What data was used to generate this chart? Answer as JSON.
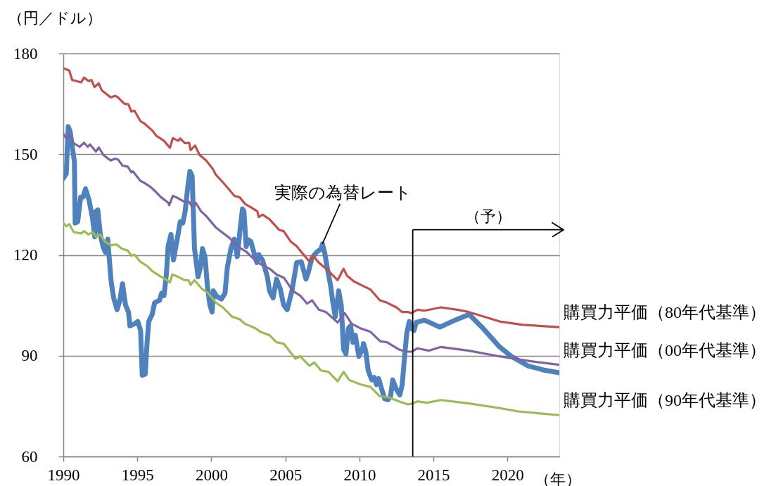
{
  "chart_data": {
    "type": "line",
    "xlabel": "（年）",
    "ylabel": "（円／ドル）",
    "xlim": [
      1990,
      2023.5
    ],
    "xticks": [
      1990,
      1995,
      2000,
      2005,
      2010,
      2015,
      2020
    ],
    "ylim": [
      60,
      180
    ],
    "yticks": [
      60,
      90,
      120,
      150,
      180
    ],
    "grid": "y",
    "line_style": "solid",
    "annotations": [
      {
        "text": "実際の為替レート",
        "x": 2007.5,
        "y": 123.3
      }
    ],
    "ref_lines": [
      {
        "axis": "x",
        "value": 2013.6,
        "color": "#000000"
      },
      {
        "axis": "y",
        "value": 127.5,
        "label": "（予）",
        "color": "#000000"
      }
    ],
    "series": [
      {
        "color": "#4f81bd",
        "x": [
          1990.0,
          1990.2,
          1990.33,
          1990.46,
          1990.75,
          1990.8,
          1990.97,
          1991.17,
          1991.33,
          1991.5,
          1991.73,
          1991.97,
          1992.13,
          1992.2,
          1992.33,
          1992.5,
          1992.68,
          1992.84,
          1993.0,
          1993.23,
          1993.4,
          1993.63,
          1993.8,
          1994.0,
          1994.2,
          1994.4,
          1994.5,
          1994.82,
          1995.03,
          1995.22,
          1995.33,
          1995.53,
          1995.66,
          1995.77,
          1996.0,
          1996.17,
          1996.5,
          1996.64,
          1996.8,
          1996.96,
          1997.08,
          1997.27,
          1997.44,
          1997.9,
          1998.07,
          1998.23,
          1998.4,
          1998.55,
          1998.7,
          1998.78,
          1998.86,
          1999.1,
          1999.26,
          1999.4,
          1999.58,
          1999.73,
          1999.9,
          2000.05,
          2000.13,
          2000.37,
          2000.68,
          2000.92,
          2001.08,
          2001.32,
          2001.55,
          2001.75,
          2001.95,
          2002.1,
          2002.2,
          2002.35,
          2002.5,
          2002.67,
          2002.8,
          2003.07,
          2003.2,
          2003.46,
          2003.78,
          2003.93,
          2004.17,
          2004.4,
          2004.65,
          2004.88,
          2005.12,
          2005.44,
          2005.76,
          2006.07,
          2006.39,
          2006.55,
          2006.79,
          2007.1,
          2007.42,
          2007.5,
          2007.66,
          2007.82,
          2008.06,
          2008.2,
          2008.37,
          2008.6,
          2008.77,
          2008.93,
          2009.09,
          2009.25,
          2009.4,
          2009.56,
          2009.72,
          2009.96,
          2010.2,
          2010.28,
          2010.43,
          2010.59,
          2010.83,
          2011.0,
          2011.15,
          2011.3,
          2011.46,
          2011.7,
          2011.94,
          2012.1,
          2012.25,
          2012.49,
          2012.73,
          2012.89,
          2013.05,
          2013.2,
          2013.37,
          2013.52,
          2013.68,
          2013.84,
          2014.39,
          2015.43,
          2016.46,
          2017.41,
          2018.36,
          2019.47,
          2020.26,
          2021.37,
          2022.48,
          2023.5
        ],
        "values": [
          142.8,
          144.2,
          158.2,
          156.8,
          147.7,
          129.5,
          129.9,
          137.2,
          137.2,
          139.7,
          136.5,
          131.0,
          125.4,
          133.0,
          133.4,
          126.1,
          122.5,
          120.8,
          124.7,
          112.1,
          107.2,
          103.7,
          106.2,
          111.4,
          105.1,
          103.0,
          98.9,
          99.5,
          100.2,
          97.5,
          84.2,
          84.5,
          94.0,
          100.2,
          102.3,
          105.8,
          106.5,
          108.6,
          107.9,
          114.2,
          122.6,
          126.1,
          118.5,
          129.9,
          129.5,
          133.0,
          140.0,
          144.9,
          143.5,
          133.0,
          121.9,
          113.5,
          116.3,
          121.9,
          119.1,
          110.7,
          105.1,
          103.0,
          109.3,
          107.6,
          106.9,
          108.6,
          116.3,
          121.9,
          124.7,
          119.5,
          128.0,
          133.7,
          133.0,
          122.5,
          124.5,
          124.0,
          121.9,
          117.7,
          120.1,
          118.4,
          113.5,
          109.3,
          107.2,
          112.8,
          110.0,
          105.1,
          103.7,
          109.3,
          117.7,
          118.0,
          112.8,
          114.9,
          119.1,
          120.8,
          121.9,
          123.3,
          120.5,
          116.3,
          110.7,
          106.0,
          101.6,
          109.3,
          105.1,
          91.9,
          90.5,
          98.1,
          98.9,
          94.0,
          96.1,
          89.8,
          91.9,
          93.6,
          91.2,
          85.6,
          82.8,
          83.5,
          81.4,
          83.2,
          80.7,
          77.2,
          76.9,
          77.9,
          82.8,
          80.0,
          78.3,
          81.4,
          89.8,
          96.8,
          100.2,
          98.1,
          97.5,
          99.9,
          100.6,
          98.5,
          100.6,
          102.3,
          98.1,
          92.6,
          89.8,
          87.0,
          85.7,
          84.9
        ]
      },
      {
        "name": "購買力平価（80年代基準）",
        "color": "#c0504d",
        "x": [
          1990.0,
          1990.4,
          1990.6,
          1991.2,
          1991.4,
          1991.7,
          1991.9,
          1992.1,
          1992.4,
          1992.6,
          1993.2,
          1993.5,
          1993.7,
          1994.1,
          1994.4,
          1994.6,
          1994.8,
          1995.2,
          1995.45,
          1996.0,
          1996.3,
          1996.8,
          1997.2,
          1997.4,
          1997.75,
          1997.9,
          1998.2,
          1998.5,
          1998.6,
          1998.9,
          1999.2,
          1999.65,
          2000.1,
          2000.3,
          2000.6,
          2001.1,
          2001.55,
          2001.9,
          2002.3,
          2002.7,
          2003.1,
          2003.2,
          2003.46,
          2003.93,
          2004.57,
          2004.88,
          2005.36,
          2005.76,
          2006.15,
          2006.63,
          2006.87,
          2007.26,
          2007.74,
          2008.06,
          2008.53,
          2008.93,
          2009.16,
          2009.64,
          2010.28,
          2010.75,
          2011.38,
          2011.86,
          2012.49,
          2012.89,
          2013.29,
          2013.52,
          2013.92,
          2014.39,
          2015.5,
          2016.6,
          2017.4,
          2019.47,
          2021.05,
          2023.5
        ],
        "values": [
          175.6,
          174.9,
          172.1,
          171.4,
          172.8,
          171.8,
          172.1,
          170.0,
          171.1,
          169.0,
          166.9,
          167.4,
          166.9,
          165.1,
          164.8,
          162.7,
          163.0,
          159.9,
          159.2,
          157.1,
          155.4,
          154.0,
          151.9,
          154.8,
          154.0,
          154.7,
          153.3,
          153.4,
          151.2,
          152.6,
          149.8,
          148.1,
          145.6,
          143.9,
          142.5,
          140.0,
          137.6,
          137.2,
          135.1,
          134.1,
          133.0,
          131.3,
          132.0,
          130.6,
          127.5,
          127.1,
          124.0,
          122.6,
          120.5,
          118.0,
          119.8,
          117.7,
          115.9,
          114.6,
          112.5,
          115.9,
          113.8,
          112.1,
          110.7,
          109.7,
          106.5,
          105.8,
          104.4,
          103.0,
          103.0,
          102.7,
          103.7,
          103.4,
          104.4,
          103.7,
          103.0,
          100.2,
          99.2,
          98.5
        ]
      },
      {
        "name": "購買力平価（00年代基準）",
        "color": "#8064a2",
        "x": [
          1990.0,
          1990.2,
          1990.4,
          1990.7,
          1991.1,
          1991.4,
          1991.65,
          1991.8,
          1992.2,
          1992.4,
          1992.7,
          1993.2,
          1993.5,
          1993.7,
          1994.0,
          1994.35,
          1994.6,
          1994.7,
          1995.2,
          1995.5,
          1995.85,
          1996.2,
          1996.6,
          1997.1,
          1997.15,
          1997.4,
          1997.75,
          1998.2,
          1998.5,
          1998.7,
          1998.95,
          1999.3,
          1999.65,
          2000.3,
          2000.7,
          2001.25,
          2001.55,
          2002.0,
          2002.35,
          2002.8,
          2003.3,
          2003.93,
          2004.4,
          2004.9,
          2005.5,
          2006.0,
          2006.47,
          2006.8,
          2007.26,
          2007.74,
          2008.53,
          2009.0,
          2009.48,
          2010.1,
          2010.75,
          2011.4,
          2011.86,
          2012.65,
          2013.13,
          2013.52,
          2013.92,
          2014.7,
          2015.5,
          2017.4,
          2019.47,
          2021.5,
          2023.5
        ],
        "values": [
          156.1,
          154.7,
          155.7,
          153.3,
          152.2,
          153.4,
          152.2,
          152.9,
          150.8,
          152.0,
          149.8,
          148.1,
          148.7,
          148.4,
          146.6,
          146.3,
          144.6,
          144.9,
          142.1,
          141.4,
          140.4,
          139.0,
          137.2,
          135.5,
          134.8,
          137.6,
          136.9,
          135.8,
          135.8,
          134.4,
          135.5,
          133.0,
          131.6,
          128.2,
          126.8,
          125.0,
          123.3,
          121.9,
          121.0,
          119.1,
          117.3,
          115.9,
          114.2,
          113.2,
          109.3,
          107.9,
          105.5,
          106.5,
          103.7,
          103.0,
          99.9,
          102.7,
          99.5,
          98.1,
          97.1,
          94.3,
          94.0,
          91.9,
          91.2,
          91.2,
          92.2,
          91.5,
          92.6,
          91.5,
          89.8,
          88.4,
          87.3
        ]
      },
      {
        "name": "購買力平価（90年代基準）",
        "color": "#9bbb59",
        "x": [
          1990.0,
          1990.2,
          1990.4,
          1990.7,
          1991.2,
          1991.4,
          1991.7,
          1992.0,
          1992.2,
          1992.5,
          1992.8,
          1993.2,
          1993.6,
          1993.95,
          1994.35,
          1994.6,
          1994.8,
          1995.2,
          1995.7,
          1996.0,
          1996.5,
          1997.0,
          1997.2,
          1997.36,
          1997.75,
          1998.2,
          1998.45,
          1998.6,
          1998.86,
          1999.34,
          1999.8,
          2000.3,
          2000.77,
          2001.4,
          2001.9,
          2002.27,
          2003.0,
          2003.3,
          2003.93,
          2004.4,
          2004.88,
          2005.68,
          2006.0,
          2006.63,
          2006.95,
          2007.4,
          2007.9,
          2008.53,
          2008.93,
          2009.3,
          2010.1,
          2010.75,
          2011.38,
          2012.0,
          2012.8,
          2013.29,
          2013.52,
          2013.92,
          2014.56,
          2015.5,
          2017.4,
          2019.47,
          2020.74,
          2023.5
        ],
        "values": [
          129.5,
          128.5,
          129.2,
          126.8,
          126.4,
          127.1,
          126.1,
          126.8,
          125.4,
          126.1,
          124.0,
          122.9,
          123.1,
          121.9,
          121.3,
          119.8,
          120.1,
          118.0,
          116.6,
          115.2,
          113.8,
          112.5,
          111.8,
          114.2,
          113.5,
          112.5,
          112.5,
          111.1,
          112.5,
          110.0,
          108.6,
          105.8,
          104.4,
          101.6,
          100.9,
          99.5,
          98.1,
          97.1,
          96.1,
          94.0,
          93.6,
          89.1,
          89.8,
          87.0,
          88.0,
          85.6,
          85.2,
          82.4,
          85.2,
          82.8,
          81.4,
          80.7,
          77.9,
          77.6,
          76.2,
          75.5,
          75.7,
          76.4,
          76.0,
          76.8,
          75.8,
          74.4,
          73.4,
          72.3
        ]
      }
    ]
  }
}
